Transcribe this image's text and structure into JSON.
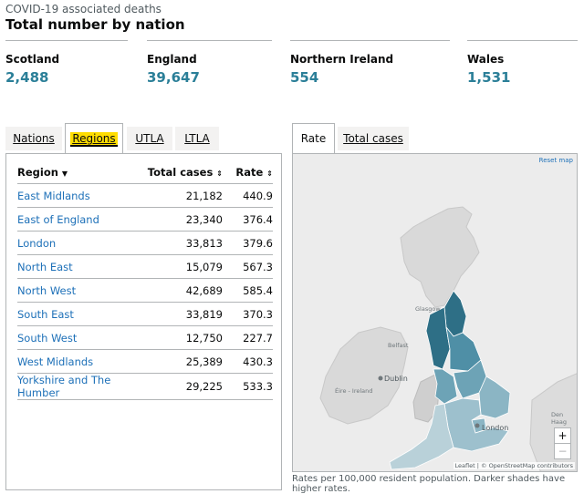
{
  "header": {
    "caption": "COVID-19 associated deaths",
    "title": "Total number by nation"
  },
  "nations": [
    {
      "name": "Scotland",
      "value": "2,488"
    },
    {
      "name": "England",
      "value": "39,647"
    },
    {
      "name": "Northern Ireland",
      "value": "554"
    },
    {
      "name": "Wales",
      "value": "1,531"
    }
  ],
  "left_tabs": [
    "Nations",
    "Regions",
    "UTLA",
    "LTLA"
  ],
  "left_active_tab": "Regions",
  "table": {
    "headers": {
      "region": "Region",
      "total_cases": "Total cases",
      "rate": "Rate"
    },
    "rows": [
      {
        "region": "East Midlands",
        "total_cases": "21,182",
        "rate": "440.9"
      },
      {
        "region": "East of England",
        "total_cases": "23,340",
        "rate": "376.4"
      },
      {
        "region": "London",
        "total_cases": "33,813",
        "rate": "379.6"
      },
      {
        "region": "North East",
        "total_cases": "15,079",
        "rate": "567.3"
      },
      {
        "region": "North West",
        "total_cases": "42,689",
        "rate": "585.4"
      },
      {
        "region": "South East",
        "total_cases": "33,819",
        "rate": "370.3"
      },
      {
        "region": "South West",
        "total_cases": "12,750",
        "rate": "227.7"
      },
      {
        "region": "West Midlands",
        "total_cases": "25,389",
        "rate": "430.3"
      },
      {
        "region": "Yorkshire and The Humber",
        "total_cases": "29,225",
        "rate": "533.3"
      }
    ]
  },
  "right_tabs": [
    "Rate",
    "Total cases"
  ],
  "right_active_tab": "Rate",
  "map": {
    "reset_label": "Reset map",
    "zoom_in": "+",
    "zoom_out": "−",
    "attribution": "Leaflet | © OpenStreetMap contributors",
    "place_labels": {
      "glasgow": "Glasgow",
      "belfast": "Belfast",
      "dublin": "Dublin",
      "eire": "Éire - Ireland",
      "london": "London",
      "den_haag": "Den Haag"
    },
    "colors": {
      "dark": "#2e6f86",
      "mid": "#4f8fa6",
      "light": "#8bb5c4",
      "lightest": "#b9d1d9"
    }
  },
  "map_note": "Rates per 100,000 resident population. Darker shades have higher rates."
}
